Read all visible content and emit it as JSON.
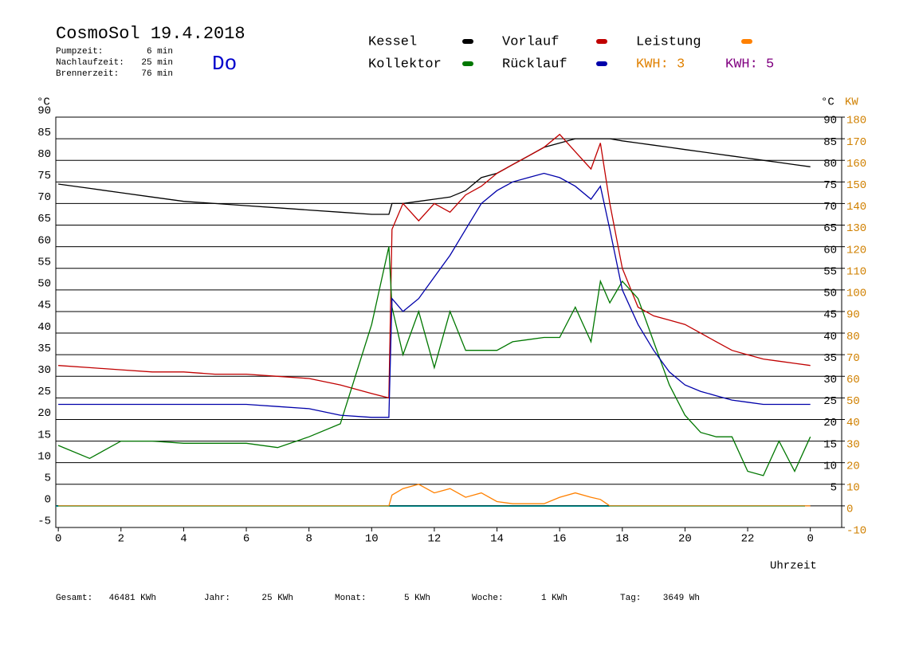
{
  "chart_data": {
    "type": "line",
    "title": "CosmoSol 19.4.2018",
    "day": "Do",
    "info": [
      {
        "label": "Pumpzeit:",
        "value": "6 min"
      },
      {
        "label": "Nachlaufzeit:",
        "value": "25 min"
      },
      {
        "label": "Brennerzeit:",
        "value": "76 min"
      }
    ],
    "kwh_labels": [
      {
        "text": "KWH: 3",
        "color": "#e08000"
      },
      {
        "text": "KWH: 5",
        "color": "#800080"
      }
    ],
    "y_unit": "°C",
    "y_unit_right": "°C",
    "y2_unit": "KW",
    "xlabel": "Uhrzeit",
    "x": [
      0,
      1,
      2,
      3,
      4,
      5,
      6,
      7,
      8,
      9,
      10,
      10.55,
      10.65,
      11,
      11.5,
      12,
      12.5,
      13,
      13.5,
      14,
      14.5,
      15,
      15.5,
      16,
      16.5,
      17,
      17.3,
      17.6,
      18,
      18.5,
      19,
      19.5,
      20,
      20.5,
      21,
      21.5,
      22,
      22.5,
      23,
      23.5,
      24
    ],
    "series": [
      {
        "name": "Kessel",
        "color": "#000000",
        "values": [
          74.5,
          73.5,
          72.5,
          71.5,
          70.5,
          70,
          69.5,
          69,
          68.5,
          68,
          67.5,
          67.5,
          70,
          70,
          70.5,
          71,
          71.5,
          73,
          76,
          77,
          79,
          81,
          83,
          84,
          85,
          85,
          85,
          85,
          84.5,
          84,
          83.5,
          83,
          82.5,
          82,
          81.5,
          81,
          80.5,
          80,
          79.5,
          79,
          78.5
        ]
      },
      {
        "name": "Vorlauf",
        "color": "#c00000",
        "values": [
          32.5,
          32,
          31.5,
          31,
          31,
          30.5,
          30.5,
          30,
          29.5,
          28,
          26,
          25,
          64,
          70,
          66,
          70,
          68,
          72,
          74,
          77,
          79,
          81,
          83,
          86,
          82,
          78,
          84,
          70,
          55,
          46,
          44,
          43,
          42,
          40,
          38,
          36,
          35,
          34,
          33.5,
          33,
          32.5
        ]
      },
      {
        "name": "Leistung",
        "color": "#ff8000",
        "axis": "y2",
        "values": [
          0,
          0,
          0,
          0,
          0,
          0,
          0,
          0,
          0,
          0,
          0,
          0,
          5,
          8,
          10,
          6,
          8,
          4,
          6,
          2,
          1,
          1,
          1,
          4,
          6,
          4,
          3,
          0,
          0,
          0,
          0,
          0,
          0,
          0,
          0,
          0,
          0,
          0,
          0,
          0,
          0
        ]
      },
      {
        "name": "Kollektor",
        "color": "#007700",
        "values": [
          14,
          11,
          15,
          15,
          14.5,
          14.5,
          14.5,
          13.5,
          16,
          19,
          42,
          60,
          46,
          35,
          45,
          32,
          45,
          36,
          36,
          36,
          38,
          38.5,
          39,
          39,
          46,
          38,
          52,
          47,
          52,
          48,
          38,
          28,
          21,
          17,
          16,
          16,
          8,
          7,
          15,
          8,
          16
        ]
      },
      {
        "name": "Rücklauf",
        "color": "#0000aa",
        "values": [
          23.5,
          23.5,
          23.5,
          23.5,
          23.5,
          23.5,
          23.5,
          23,
          22.5,
          21,
          20.5,
          20.5,
          48,
          45,
          48,
          53,
          58,
          64,
          70,
          73,
          75,
          76,
          77,
          76,
          74,
          71,
          74,
          64,
          50,
          42,
          36,
          31,
          28,
          26.5,
          25.5,
          24.5,
          24,
          23.5,
          23.5,
          23.5,
          23.5
        ]
      }
    ],
    "xlim": [
      -0.08,
      25
    ],
    "xticks": [
      0,
      2,
      4,
      6,
      8,
      10,
      12,
      14,
      16,
      18,
      20,
      22,
      {
        "value": 24,
        "label": "0"
      }
    ],
    "ylim": [
      -5,
      90
    ],
    "yticks": [
      -5,
      0,
      5,
      10,
      15,
      20,
      25,
      30,
      35,
      40,
      45,
      50,
      55,
      60,
      65,
      70,
      75,
      80,
      85,
      90
    ],
    "yticks_right": [
      5,
      10,
      15,
      20,
      25,
      30,
      35,
      40,
      45,
      50,
      55,
      60,
      65,
      70,
      75,
      80,
      85,
      90
    ],
    "y2lim": [
      -10,
      180
    ],
    "y2ticks": [
      -10,
      0,
      10,
      20,
      30,
      40,
      50,
      60,
      70,
      80,
      90,
      100,
      110,
      120,
      130,
      140,
      150,
      160,
      170,
      180
    ],
    "grid": true,
    "totals": [
      {
        "label": "Gesamt:",
        "value": "46481 KWh"
      },
      {
        "label": "Jahr:",
        "value": "25 KWh"
      },
      {
        "label": "Monat:",
        "value": "5 KWh"
      },
      {
        "label": "Woche:",
        "value": "1 KWh"
      },
      {
        "label": "Tag:",
        "value": "3649 Wh"
      }
    ]
  }
}
